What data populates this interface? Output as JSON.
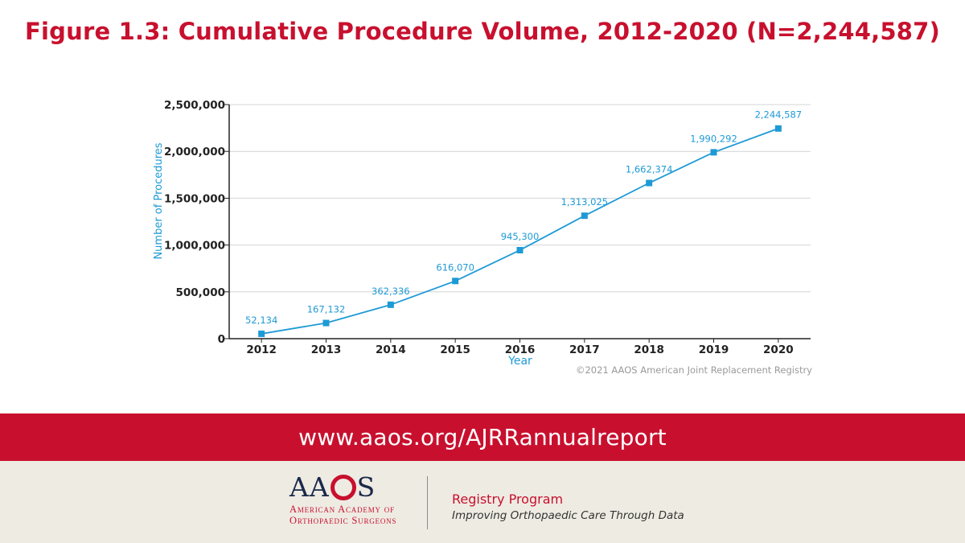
{
  "colors": {
    "brand_red": "#c8102e",
    "series_blue": "#1e9ad6",
    "footer_bg": "#eeebe3",
    "navy": "#1b2a4a"
  },
  "chart_data": {
    "type": "line",
    "title": "Figure 1.3: Cumulative Procedure Volume, 2012-2020 (N=2,244,587)",
    "xlabel": "Year",
    "ylabel": "Number of Procedures",
    "categories": [
      "2012",
      "2013",
      "2014",
      "2015",
      "2016",
      "2017",
      "2018",
      "2019",
      "2020"
    ],
    "series": [
      {
        "values": [
          52134,
          167132,
          362336,
          616070,
          945300,
          1313025,
          1662374,
          1990292,
          2244587
        ],
        "labels": [
          "52,134",
          "167,132",
          "362,336",
          "616,070",
          "945,300",
          "1,313,025",
          "1,662,374",
          "1,990,292",
          "2,244,587"
        ],
        "marker": "square",
        "color": "#1e9ad6"
      }
    ],
    "ylim": [
      0,
      2500000
    ],
    "yticks": [
      0,
      500000,
      1000000,
      1500000,
      2000000,
      2500000
    ],
    "ytick_labels": [
      "0",
      "500,000",
      "1,000,000",
      "1,500,000",
      "2,000,000",
      "2,500,000"
    ],
    "grid": true,
    "legend": "none",
    "source_note": "©2021 AAOS American Joint Replacement Registry"
  },
  "footer": {
    "url": "www.aaos.org/AJRRannualreport",
    "logo_letters": [
      "AA",
      "S"
    ],
    "logo_line1": "American Academy of",
    "logo_line2": "Orthopaedic Surgeons",
    "program_name": "Registry Program",
    "program_tagline": "Improving Orthopaedic Care Through Data"
  }
}
